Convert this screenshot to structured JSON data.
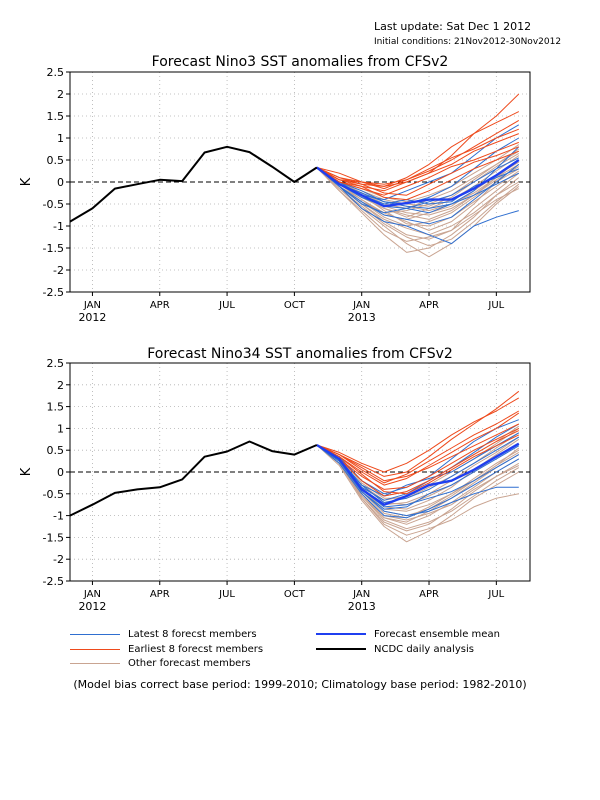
{
  "header": {
    "last_update": "Last update: Sat Dec 1 2012",
    "initial_conditions": "Initial conditions: 21Nov2012-30Nov2012"
  },
  "legend": {
    "latest": "Latest 8 forecst members",
    "earliest": "Earliest 8 forecst members",
    "other": "Other forecast members",
    "mean": "Forecast ensemble mean",
    "obs": "NCDC daily analysis"
  },
  "footnote": "(Model bias correct base period: 1999-2010; Climatology base period: 1982-2010)",
  "colors": {
    "latest": "#2f6fd0",
    "earliest": "#ee4a1c",
    "other": "#c9a491",
    "mean": "#1f3ff0",
    "obs": "#000000"
  },
  "chart_data": [
    {
      "type": "line",
      "title": "Forecast Nino3 SST anomalies from CFSv2",
      "ylabel": "K",
      "ylim": [
        -2.5,
        2.5
      ],
      "yticks": [
        "2.5",
        "2",
        "1.5",
        "1",
        "0.5",
        "0",
        "-0.5",
        "-1",
        "-1.5",
        "-2",
        "-2.5"
      ],
      "xticks": [
        {
          "label": "JAN",
          "year": "2012",
          "x": "2012-01"
        },
        {
          "label": "APR",
          "year": "",
          "x": "2012-04"
        },
        {
          "label": "JUL",
          "year": "",
          "x": "2012-07"
        },
        {
          "label": "OCT",
          "year": "",
          "x": "2012-10"
        },
        {
          "label": "JAN",
          "year": "2013",
          "x": "2013-01"
        },
        {
          "label": "APR",
          "year": "",
          "x": "2013-04"
        },
        {
          "label": "JUL",
          "year": "",
          "x": "2013-07"
        }
      ],
      "grid": true,
      "observed": {
        "x": [
          "2011-12",
          "2012-01",
          "2012-02",
          "2012-03",
          "2012-04",
          "2012-05",
          "2012-06",
          "2012-07",
          "2012-08",
          "2012-09",
          "2012-10",
          "2012-11"
        ],
        "y": [
          -0.9,
          -0.6,
          -0.15,
          -0.05,
          0.05,
          0.02,
          0.67,
          0.8,
          0.68,
          0.35,
          0.0,
          0.33
        ]
      },
      "forecast_x": [
        "2012-11",
        "2012-12",
        "2013-01",
        "2013-02",
        "2013-03",
        "2013-04",
        "2013-05",
        "2013-06",
        "2013-07",
        "2013-08"
      ],
      "ensemble_mean": [
        0.33,
        -0.05,
        -0.3,
        -0.55,
        -0.48,
        -0.4,
        -0.4,
        -0.15,
        0.15,
        0.5
      ],
      "members_latest": [
        [
          0.33,
          -0.1,
          -0.6,
          -0.9,
          -1.0,
          -1.2,
          -1.4,
          -1.0,
          -0.8,
          -0.65
        ],
        [
          0.33,
          -0.05,
          -0.35,
          -0.55,
          -0.6,
          -0.7,
          -0.5,
          -0.2,
          0.3,
          0.8
        ],
        [
          0.33,
          0.0,
          -0.3,
          -0.4,
          -0.2,
          0.0,
          0.2,
          0.6,
          1.0,
          1.3
        ],
        [
          0.33,
          -0.1,
          -0.45,
          -0.75,
          -0.85,
          -0.95,
          -0.8,
          -0.4,
          0.0,
          0.4
        ],
        [
          0.33,
          -0.05,
          -0.25,
          -0.45,
          -0.5,
          -0.35,
          -0.1,
          0.3,
          0.7,
          1.0
        ],
        [
          0.33,
          0.0,
          -0.2,
          -0.45,
          -0.55,
          -0.6,
          -0.5,
          -0.3,
          -0.05,
          0.2
        ],
        [
          0.33,
          -0.1,
          -0.5,
          -0.7,
          -0.6,
          -0.45,
          -0.3,
          0.0,
          0.3,
          0.55
        ],
        [
          0.33,
          -0.05,
          -0.3,
          -0.5,
          -0.4,
          -0.5,
          -0.45,
          -0.1,
          0.1,
          0.3
        ]
      ],
      "members_earliest": [
        [
          0.33,
          0.2,
          0.0,
          -0.1,
          0.0,
          0.2,
          0.6,
          1.1,
          1.5,
          2.0
        ],
        [
          0.33,
          0.1,
          -0.05,
          -0.1,
          0.1,
          0.4,
          0.8,
          1.1,
          1.35,
          1.6
        ],
        [
          0.33,
          0.05,
          -0.1,
          -0.2,
          0.0,
          0.2,
          0.4,
          0.7,
          0.9,
          1.1
        ],
        [
          0.33,
          0.1,
          0.0,
          -0.05,
          0.05,
          0.3,
          0.55,
          0.75,
          1.0,
          1.2
        ],
        [
          0.33,
          0.0,
          -0.15,
          -0.3,
          -0.1,
          0.1,
          0.35,
          0.5,
          0.7,
          0.9
        ],
        [
          0.33,
          0.05,
          -0.05,
          -0.25,
          -0.3,
          -0.05,
          0.2,
          0.45,
          0.6,
          0.8
        ],
        [
          0.33,
          0.0,
          -0.1,
          -0.35,
          -0.4,
          -0.2,
          0.05,
          0.3,
          0.5,
          0.7
        ],
        [
          0.33,
          0.05,
          0.0,
          -0.15,
          0.05,
          0.25,
          0.5,
          0.8,
          1.1,
          1.4
        ]
      ],
      "members_other": [
        [
          0.33,
          -0.2,
          -0.7,
          -1.2,
          -1.6,
          -1.5,
          -1.2,
          -0.8,
          -0.3,
          0.1
        ],
        [
          0.33,
          -0.15,
          -0.6,
          -1.0,
          -1.4,
          -1.7,
          -1.4,
          -1.0,
          -0.5,
          -0.1
        ],
        [
          0.33,
          -0.1,
          -0.5,
          -0.9,
          -1.2,
          -1.3,
          -1.1,
          -0.6,
          -0.2,
          0.2
        ],
        [
          0.33,
          -0.05,
          -0.4,
          -0.7,
          -0.9,
          -1.1,
          -0.9,
          -0.5,
          0.0,
          0.4
        ],
        [
          0.33,
          0.0,
          -0.3,
          -0.55,
          -0.7,
          -0.75,
          -0.6,
          -0.3,
          0.1,
          0.5
        ],
        [
          0.33,
          -0.1,
          -0.45,
          -0.8,
          -1.0,
          -0.9,
          -0.7,
          -0.35,
          0.0,
          0.3
        ],
        [
          0.33,
          -0.05,
          -0.35,
          -0.6,
          -0.8,
          -0.6,
          -0.4,
          -0.1,
          0.25,
          0.6
        ],
        [
          0.33,
          0.0,
          -0.25,
          -0.5,
          -0.6,
          -0.4,
          -0.2,
          0.1,
          0.4,
          0.75
        ],
        [
          0.33,
          -0.15,
          -0.55,
          -0.95,
          -1.25,
          -1.45,
          -1.3,
          -0.9,
          -0.45,
          -0.05
        ],
        [
          0.33,
          -0.1,
          -0.5,
          -0.85,
          -1.05,
          -1.2,
          -1.0,
          -0.7,
          -0.3,
          0.0
        ],
        [
          0.33,
          0.0,
          -0.2,
          -0.4,
          -0.5,
          -0.55,
          -0.35,
          0.0,
          0.35,
          0.65
        ],
        [
          0.33,
          -0.05,
          -0.3,
          -0.65,
          -0.95,
          -1.0,
          -0.8,
          -0.45,
          -0.1,
          0.25
        ],
        [
          0.33,
          -0.1,
          -0.4,
          -0.75,
          -0.85,
          -0.7,
          -0.55,
          -0.2,
          0.15,
          0.45
        ],
        [
          0.33,
          0.0,
          -0.15,
          -0.35,
          -0.45,
          -0.3,
          -0.1,
          0.2,
          0.5,
          0.85
        ],
        [
          0.33,
          -0.2,
          -0.65,
          -1.1,
          -1.35,
          -1.25,
          -1.1,
          -0.75,
          -0.4,
          -0.15
        ],
        [
          0.33,
          -0.05,
          -0.35,
          -0.6,
          -0.75,
          -0.85,
          -0.65,
          -0.3,
          0.05,
          0.35
        ],
        [
          0.33,
          -0.1,
          -0.45,
          -0.7,
          -0.65,
          -0.5,
          -0.3,
          0.05,
          0.4,
          0.7
        ],
        [
          0.33,
          0.0,
          -0.25,
          -0.45,
          -0.55,
          -0.65,
          -0.5,
          -0.25,
          0.1,
          0.4
        ]
      ]
    },
    {
      "type": "line",
      "title": "Forecast Nino34 SST anomalies from CFSv2",
      "ylabel": "K",
      "ylim": [
        -2.5,
        2.5
      ],
      "yticks": [
        "2.5",
        "2",
        "1.5",
        "1",
        "0.5",
        "0",
        "-0.5",
        "-1",
        "-1.5",
        "-2",
        "-2.5"
      ],
      "xticks": [
        {
          "label": "JAN",
          "year": "2012",
          "x": "2012-01"
        },
        {
          "label": "APR",
          "year": "",
          "x": "2012-04"
        },
        {
          "label": "JUL",
          "year": "",
          "x": "2012-07"
        },
        {
          "label": "OCT",
          "year": "",
          "x": "2012-10"
        },
        {
          "label": "JAN",
          "year": "2013",
          "x": "2013-01"
        },
        {
          "label": "APR",
          "year": "",
          "x": "2013-04"
        },
        {
          "label": "JUL",
          "year": "",
          "x": "2013-07"
        }
      ],
      "grid": true,
      "observed": {
        "x": [
          "2011-12",
          "2012-01",
          "2012-02",
          "2012-03",
          "2012-04",
          "2012-05",
          "2012-06",
          "2012-07",
          "2012-08",
          "2012-09",
          "2012-10",
          "2012-11"
        ],
        "y": [
          -1.0,
          -0.75,
          -0.48,
          -0.4,
          -0.35,
          -0.17,
          0.35,
          0.47,
          0.7,
          0.48,
          0.4,
          0.62
        ]
      },
      "forecast_x": [
        "2012-11",
        "2012-12",
        "2013-01",
        "2013-02",
        "2013-03",
        "2013-04",
        "2013-05",
        "2013-06",
        "2013-07",
        "2013-08"
      ],
      "ensemble_mean": [
        0.62,
        0.3,
        -0.4,
        -0.75,
        -0.55,
        -0.3,
        -0.2,
        0.05,
        0.35,
        0.65
      ],
      "members_latest": [
        [
          0.62,
          0.25,
          -0.45,
          -0.9,
          -1.0,
          -0.9,
          -0.7,
          -0.5,
          -0.35,
          -0.35
        ],
        [
          0.62,
          0.3,
          -0.3,
          -0.7,
          -0.6,
          -0.4,
          -0.1,
          0.2,
          0.5,
          0.8
        ],
        [
          0.62,
          0.35,
          -0.2,
          -0.5,
          -0.35,
          -0.1,
          0.3,
          0.7,
          1.0,
          1.2
        ],
        [
          0.62,
          0.2,
          -0.5,
          -1.0,
          -1.05,
          -0.85,
          -0.6,
          -0.3,
          0.0,
          0.3
        ],
        [
          0.62,
          0.3,
          -0.35,
          -0.65,
          -0.5,
          -0.2,
          0.1,
          0.45,
          0.8,
          1.1
        ],
        [
          0.62,
          0.25,
          -0.4,
          -0.8,
          -0.75,
          -0.6,
          -0.45,
          -0.2,
          0.1,
          0.4
        ],
        [
          0.62,
          0.3,
          -0.3,
          -0.55,
          -0.3,
          -0.15,
          0.0,
          0.3,
          0.6,
          0.9
        ],
        [
          0.62,
          0.25,
          -0.45,
          -0.85,
          -0.8,
          -0.5,
          -0.3,
          0.0,
          0.3,
          0.6
        ]
      ],
      "members_earliest": [
        [
          0.62,
          0.4,
          0.15,
          -0.1,
          0.0,
          0.35,
          0.75,
          1.1,
          1.45,
          1.85
        ],
        [
          0.62,
          0.45,
          0.2,
          0.0,
          0.2,
          0.5,
          0.85,
          1.15,
          1.4,
          1.7
        ],
        [
          0.62,
          0.35,
          0.0,
          -0.3,
          -0.15,
          0.15,
          0.45,
          0.75,
          1.0,
          1.35
        ],
        [
          0.62,
          0.4,
          0.1,
          -0.2,
          -0.1,
          0.1,
          0.35,
          0.6,
          0.85,
          1.1
        ],
        [
          0.62,
          0.3,
          -0.1,
          -0.4,
          -0.35,
          -0.1,
          0.2,
          0.5,
          0.75,
          1.0
        ],
        [
          0.62,
          0.35,
          -0.05,
          -0.45,
          -0.5,
          -0.25,
          0.05,
          0.35,
          0.6,
          0.85
        ],
        [
          0.62,
          0.3,
          -0.2,
          -0.55,
          -0.45,
          -0.2,
          0.1,
          0.4,
          0.7,
          0.95
        ],
        [
          0.62,
          0.4,
          0.05,
          -0.25,
          -0.05,
          0.25,
          0.55,
          0.85,
          1.1,
          1.4
        ]
      ],
      "members_other": [
        [
          0.62,
          0.2,
          -0.6,
          -1.2,
          -1.45,
          -1.3,
          -1.1,
          -0.8,
          -0.6,
          -0.5
        ],
        [
          0.62,
          0.15,
          -0.65,
          -1.25,
          -1.6,
          -1.35,
          -1.0,
          -0.6,
          -0.3,
          0.0
        ],
        [
          0.62,
          0.25,
          -0.5,
          -1.05,
          -1.2,
          -1.0,
          -0.7,
          -0.35,
          0.0,
          0.3
        ],
        [
          0.62,
          0.3,
          -0.4,
          -0.85,
          -0.9,
          -0.75,
          -0.5,
          -0.2,
          0.15,
          0.45
        ],
        [
          0.62,
          0.2,
          -0.55,
          -1.1,
          -1.3,
          -1.15,
          -0.9,
          -0.55,
          -0.2,
          0.1
        ],
        [
          0.62,
          0.3,
          -0.3,
          -0.7,
          -0.75,
          -0.55,
          -0.3,
          0.0,
          0.35,
          0.65
        ],
        [
          0.62,
          0.25,
          -0.45,
          -0.95,
          -1.05,
          -0.8,
          -0.5,
          -0.15,
          0.2,
          0.5
        ],
        [
          0.62,
          0.35,
          -0.25,
          -0.6,
          -0.6,
          -0.35,
          -0.1,
          0.2,
          0.55,
          0.9
        ],
        [
          0.62,
          0.2,
          -0.6,
          -1.15,
          -1.35,
          -1.2,
          -0.85,
          -0.45,
          -0.1,
          0.2
        ],
        [
          0.62,
          0.3,
          -0.35,
          -0.8,
          -0.85,
          -0.65,
          -0.35,
          0.05,
          0.4,
          0.75
        ],
        [
          0.62,
          0.25,
          -0.5,
          -1.0,
          -1.1,
          -0.95,
          -0.75,
          -0.4,
          -0.1,
          0.15
        ],
        [
          0.62,
          0.3,
          -0.3,
          -0.65,
          -0.55,
          -0.3,
          0.0,
          0.3,
          0.65,
          1.0
        ],
        [
          0.62,
          0.2,
          -0.55,
          -1.05,
          -1.15,
          -0.9,
          -0.6,
          -0.25,
          0.1,
          0.4
        ],
        [
          0.62,
          0.35,
          -0.2,
          -0.55,
          -0.45,
          -0.2,
          0.1,
          0.4,
          0.7,
          1.05
        ],
        [
          0.62,
          0.25,
          -0.45,
          -0.9,
          -1.0,
          -0.85,
          -0.55,
          -0.2,
          0.15,
          0.55
        ],
        [
          0.62,
          0.3,
          -0.4,
          -0.75,
          -0.7,
          -0.5,
          -0.2,
          0.15,
          0.45,
          0.8
        ]
      ]
    }
  ]
}
